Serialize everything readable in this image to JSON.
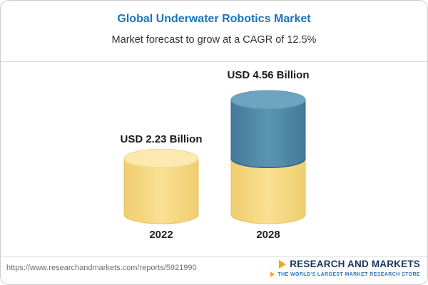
{
  "header": {
    "title": "Global Underwater Robotics Market",
    "subtitle": "Market forecast to grow at a CAGR of 12.5%"
  },
  "chart_data": {
    "type": "bar",
    "variant": "3d-cylinder-stacked",
    "title": "Global Underwater Robotics Market",
    "subtitle": "Market forecast to grow at a CAGR of 12.5%",
    "cagr": "12.5%",
    "unit": "USD Billion",
    "categories": [
      "2022",
      "2028"
    ],
    "values": [
      2.23,
      4.56
    ],
    "value_labels": [
      "USD 2.23 Billion",
      "USD 4.56 Billion"
    ],
    "ylim": [
      0,
      5
    ],
    "grid": false,
    "legend": false,
    "series": [
      {
        "name": "base",
        "values": [
          2.23,
          2.23
        ],
        "color_mid": "#F9E092",
        "color_edge": "#EFCD70",
        "edge_line": "#E6C161",
        "top_color": "#FBE9AF",
        "top_edge": "#EFD88C",
        "junction_color": "#E3BE5F"
      },
      {
        "name": "growth",
        "values": [
          0,
          2.33
        ],
        "color_mid": "#5B94B2",
        "color_edge": "#447A9B",
        "edge_line": "#3A708F",
        "top_color": "#6FA4C1",
        "top_edge": "#5E93B0",
        "junction_color": "#2F6586"
      }
    ]
  },
  "footer": {
    "url": "https://www.researchandmarkets.com/reports/5921990",
    "logo_text": "RESEARCH AND MARKETS",
    "logo_tagline": "THE WORLD'S LARGEST MARKET RESEARCH STORE"
  },
  "colors": {
    "title_blue": "#1C74B8",
    "bar_yellow": "#F7D981",
    "bar_blue": "#4E87A6",
    "logo_navy": "#16365C",
    "logo_gold": "#F0A81C",
    "tagline_blue": "#2E75B5",
    "border": "#CCCCCC"
  }
}
